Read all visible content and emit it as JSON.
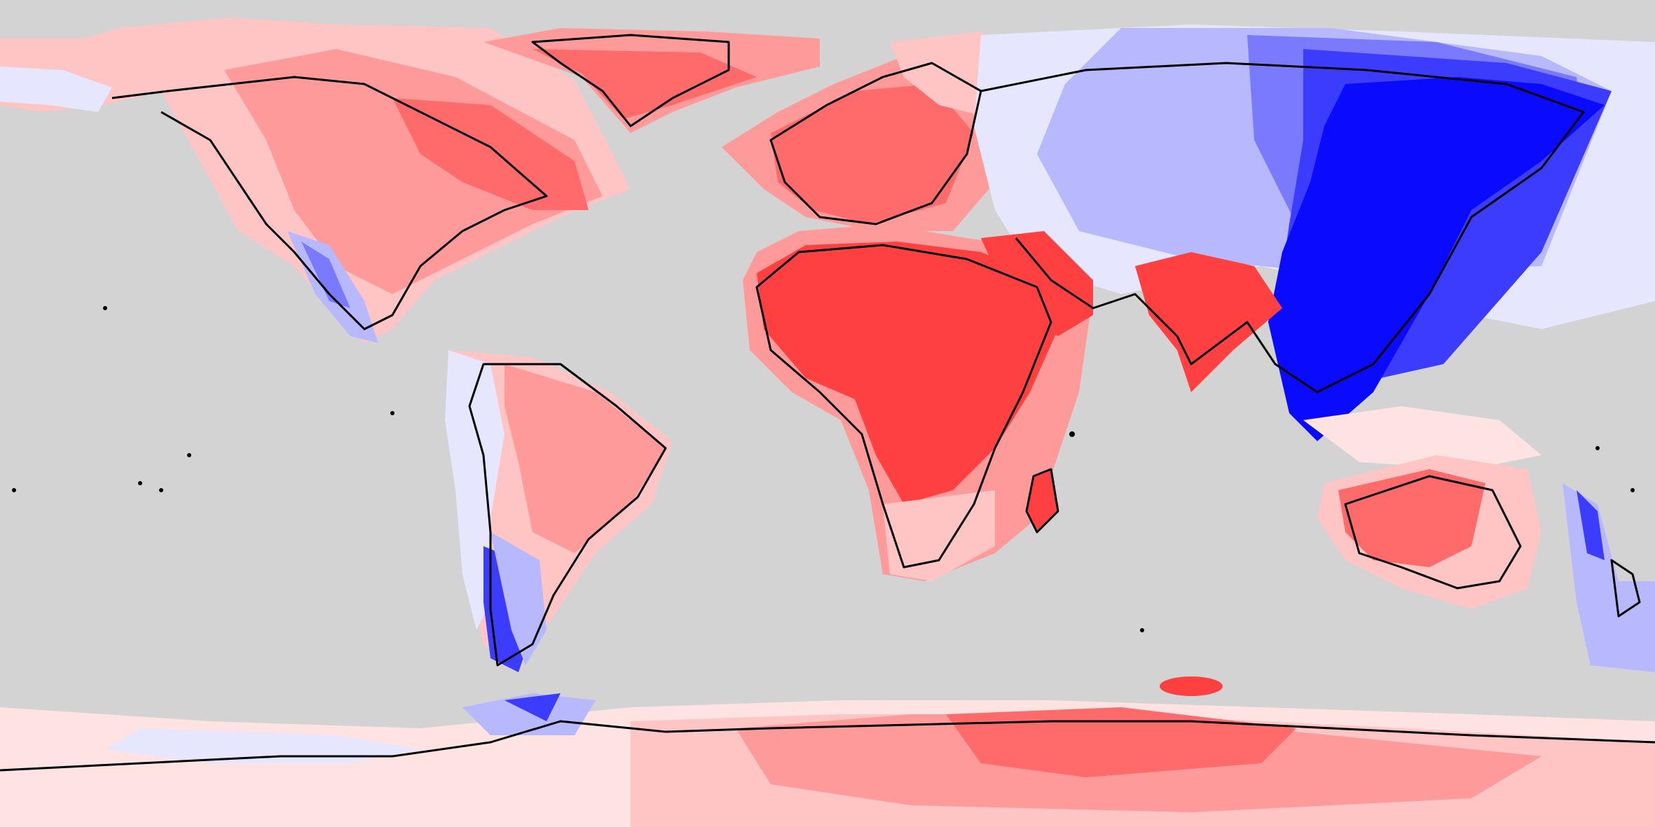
{
  "map": {
    "type": "choropleth",
    "projection": "equirectangular",
    "ocean_color": "#d3d3d3",
    "coastline_color": "#000000",
    "legend": null,
    "title": "",
    "palette": {
      "red_strong": "#ff4040",
      "red_medium": "#ff6a6a",
      "red_light": "#ff9a9a",
      "red_pale": "#ffc4c4",
      "pinkish_white": "#ffe2e2",
      "near_white": "#fff3f3",
      "blue_pale": "#e6e6ff",
      "blue_light": "#b8b8ff",
      "blue_medium": "#7a7aff",
      "blue_strong": "#3c3cff",
      "blue_dark": "#0a0aff"
    },
    "regions": [
      {
        "name": "north-america",
        "tone": "red_light"
      },
      {
        "name": "greenland",
        "tone": "red_medium"
      },
      {
        "name": "europe",
        "tone": "red_medium"
      },
      {
        "name": "africa",
        "tone": "red_strong"
      },
      {
        "name": "arabia",
        "tone": "red_strong"
      },
      {
        "name": "india",
        "tone": "red_strong"
      },
      {
        "name": "north-asia",
        "tone": "blue_light"
      },
      {
        "name": "east-asia",
        "tone": "blue_dark"
      },
      {
        "name": "south-america",
        "tone": "red_light"
      },
      {
        "name": "andes",
        "tone": "blue_pale"
      },
      {
        "name": "patagonia",
        "tone": "blue_strong"
      },
      {
        "name": "australia",
        "tone": "red_light"
      },
      {
        "name": "new-zealand",
        "tone": "blue_light"
      },
      {
        "name": "antarctica",
        "tone": "red_light"
      }
    ]
  }
}
